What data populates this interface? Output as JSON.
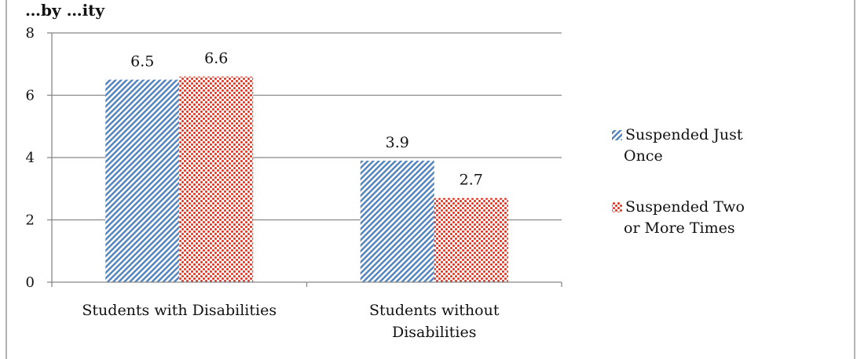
{
  "header_fragment": "…by …ity",
  "chart_data": {
    "type": "bar",
    "categories": [
      "Students with Disabilities",
      "Students without Disabilities"
    ],
    "category_lines": [
      [
        "Students with Disabilities"
      ],
      [
        "Students without",
        "Disabilities"
      ]
    ],
    "series": [
      {
        "name": "Suspended Just Once",
        "name_lines": [
          "Suspended Just",
          "Once"
        ],
        "values": [
          6.5,
          3.9
        ],
        "color": "#4f81bd",
        "pattern": "diagonal-stripes"
      },
      {
        "name": "Suspended Two or More Times",
        "name_lines": [
          "Suspended Two",
          "or More Times"
        ],
        "values": [
          6.6,
          2.7
        ],
        "color": "#e0301e",
        "pattern": "dots"
      }
    ],
    "data_labels": [
      [
        "6.5",
        "3.9"
      ],
      [
        "6.6",
        "2.7"
      ]
    ],
    "ylim": [
      0,
      8
    ],
    "yticks": [
      0,
      2,
      4,
      6,
      8
    ],
    "grid": true,
    "legend": "right",
    "title": "",
    "xlabel": "",
    "ylabel": ""
  }
}
